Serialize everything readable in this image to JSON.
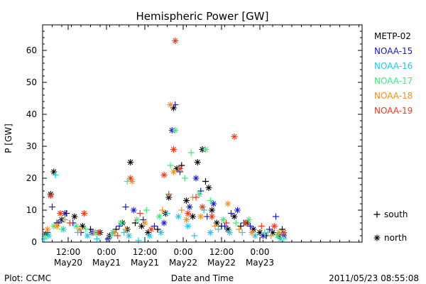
{
  "chart_data": {
    "type": "scatter",
    "title": "Hemispheric Power [GW]",
    "xlabel": "Date and Time",
    "ylabel": "P [GW]",
    "ylim": [
      0,
      68
    ],
    "yticks": [
      0,
      10,
      20,
      30,
      40,
      50,
      60
    ],
    "xlim": [
      "2011-05-20 04:00",
      "2011-05-24 08:00"
    ],
    "xticks": [
      {
        "t": "2011-05-20 12:00",
        "top": "12:00",
        "bottom": "May20"
      },
      {
        "t": "2011-05-21 00:00",
        "top": "0:00",
        "bottom": "May21"
      },
      {
        "t": "2011-05-21 12:00",
        "top": "12:00",
        "bottom": "May21"
      },
      {
        "t": "2011-05-22 00:00",
        "top": "0:00",
        "bottom": "May22"
      },
      {
        "t": "2011-05-22 12:00",
        "top": "12:00",
        "bottom": "May22"
      },
      {
        "t": "2011-05-23 00:00",
        "top": "0:00",
        "bottom": "May23"
      }
    ],
    "legend": {
      "placement": "right",
      "entries": [
        {
          "name": "METP-02",
          "color": "#000000"
        },
        {
          "name": "NOAA-15",
          "color": "#1a1acc"
        },
        {
          "name": "NOAA-16",
          "color": "#22c8e6"
        },
        {
          "name": "NOAA-17",
          "color": "#40e880"
        },
        {
          "name": "NOAA-18",
          "color": "#f0901e"
        },
        {
          "name": "NOAA-19",
          "color": "#e83c1c"
        }
      ],
      "markers": [
        {
          "symbol": "+",
          "label": "south"
        },
        {
          "symbol": "*",
          "label": "north"
        }
      ]
    },
    "footer": {
      "left": "Plot: CCMC",
      "right": "2011/05/23 08:55:08"
    },
    "series": [
      {
        "name": "METP-02",
        "color": "#000000",
        "points": [
          [
            "2011-05-20 05:00",
            2.5,
            "north"
          ],
          [
            "2011-05-20 06:30",
            15,
            "north"
          ],
          [
            "2011-05-20 07:30",
            22,
            "north"
          ],
          [
            "2011-05-20 08:30",
            6,
            "south"
          ],
          [
            "2011-05-20 10:00",
            7,
            "north"
          ],
          [
            "2011-05-20 11:30",
            9,
            "south"
          ],
          [
            "2011-05-20 14:00",
            8,
            "north"
          ],
          [
            "2011-05-20 16:30",
            5,
            "north"
          ],
          [
            "2011-05-20 19:00",
            4,
            "south"
          ],
          [
            "2011-05-20 22:00",
            3,
            "north"
          ],
          [
            "2011-05-21 01:00",
            2,
            "north"
          ],
          [
            "2011-05-21 03:00",
            4,
            "south"
          ],
          [
            "2011-05-21 05:00",
            6,
            "north"
          ],
          [
            "2011-05-21 06:30",
            4,
            "north"
          ],
          [
            "2011-05-21 07:30",
            25,
            "north"
          ],
          [
            "2011-05-21 09:00",
            6,
            "south"
          ],
          [
            "2011-05-21 11:00",
            5,
            "north"
          ],
          [
            "2011-05-21 13:00",
            3,
            "north"
          ],
          [
            "2011-05-21 16:00",
            4,
            "south"
          ],
          [
            "2011-05-21 18:30",
            9,
            "north"
          ],
          [
            "2011-05-21 19:30",
            14,
            "north"
          ],
          [
            "2011-05-21 21:00",
            42,
            "north"
          ],
          [
            "2011-05-21 22:00",
            23,
            "north"
          ],
          [
            "2011-05-21 23:30",
            24,
            "south"
          ],
          [
            "2011-05-22 01:00",
            13,
            "north"
          ],
          [
            "2011-05-22 03:00",
            8,
            "north"
          ],
          [
            "2011-05-22 04:30",
            25,
            "north"
          ],
          [
            "2011-05-22 06:00",
            29,
            "north"
          ],
          [
            "2011-05-22 07:00",
            19,
            "south"
          ],
          [
            "2011-05-22 08:00",
            17,
            "north"
          ],
          [
            "2011-05-22 09:00",
            10,
            "north"
          ],
          [
            "2011-05-22 10:30",
            6,
            "north"
          ],
          [
            "2011-05-22 12:00",
            5,
            "south"
          ],
          [
            "2011-05-22 14:00",
            4,
            "north"
          ],
          [
            "2011-05-22 16:00",
            8,
            "north"
          ],
          [
            "2011-05-22 18:00",
            5,
            "south"
          ],
          [
            "2011-05-22 20:00",
            6,
            "north"
          ],
          [
            "2011-05-22 22:00",
            4,
            "north"
          ],
          [
            "2011-05-23 00:00",
            3,
            "north"
          ],
          [
            "2011-05-23 02:00",
            2,
            "south"
          ],
          [
            "2011-05-23 04:00",
            3,
            "north"
          ],
          [
            "2011-05-23 06:00",
            2,
            "north"
          ],
          [
            "2011-05-23 07:00",
            4,
            "south"
          ]
        ]
      },
      {
        "name": "NOAA-15",
        "color": "#1a1acc",
        "points": [
          [
            "2011-05-20 05:30",
            3,
            "south"
          ],
          [
            "2011-05-20 07:00",
            11,
            "south"
          ],
          [
            "2011-05-20 09:00",
            6,
            "south"
          ],
          [
            "2011-05-20 11:00",
            9,
            "north"
          ],
          [
            "2011-05-20 13:30",
            6,
            "south"
          ],
          [
            "2011-05-20 16:00",
            3,
            "south"
          ],
          [
            "2011-05-20 19:30",
            3,
            "north"
          ],
          [
            "2011-05-21 00:30",
            1,
            "south"
          ],
          [
            "2011-05-21 04:00",
            5,
            "south"
          ],
          [
            "2011-05-21 06:00",
            11,
            "south"
          ],
          [
            "2011-05-21 08:30",
            10,
            "north"
          ],
          [
            "2011-05-21 11:30",
            7,
            "south"
          ],
          [
            "2011-05-21 15:00",
            5,
            "south"
          ],
          [
            "2011-05-21 18:00",
            6,
            "north"
          ],
          [
            "2011-05-21 20:30",
            35,
            "north"
          ],
          [
            "2011-05-21 21:30",
            43,
            "south"
          ],
          [
            "2011-05-21 23:00",
            22,
            "south"
          ],
          [
            "2011-05-22 02:00",
            11,
            "north"
          ],
          [
            "2011-05-22 04:00",
            20,
            "north"
          ],
          [
            "2011-05-22 05:30",
            16,
            "south"
          ],
          [
            "2011-05-22 07:30",
            8,
            "south"
          ],
          [
            "2011-05-22 09:30",
            12,
            "north"
          ],
          [
            "2011-05-22 13:00",
            5,
            "south"
          ],
          [
            "2011-05-22 15:00",
            9,
            "south"
          ],
          [
            "2011-05-22 17:00",
            10,
            "north"
          ],
          [
            "2011-05-22 19:00",
            6,
            "south"
          ],
          [
            "2011-05-22 21:00",
            5,
            "south"
          ],
          [
            "2011-05-23 01:00",
            2,
            "north"
          ],
          [
            "2011-05-23 03:00",
            4,
            "south"
          ],
          [
            "2011-05-23 05:00",
            8,
            "south"
          ],
          [
            "2011-05-23 07:30",
            2,
            "north"
          ]
        ]
      },
      {
        "name": "NOAA-16",
        "color": "#22c8e6",
        "points": [
          [
            "2011-05-20 04:30",
            1,
            "south"
          ],
          [
            "2011-05-20 06:00",
            2,
            "north"
          ],
          [
            "2011-05-20 08:00",
            21,
            "south"
          ],
          [
            "2011-05-20 10:30",
            4,
            "north"
          ],
          [
            "2011-05-20 15:00",
            3,
            "south"
          ],
          [
            "2011-05-20 18:00",
            2,
            "north"
          ],
          [
            "2011-05-20 21:00",
            1,
            "south"
          ],
          [
            "2011-05-21 02:00",
            3,
            "north"
          ],
          [
            "2011-05-21 05:30",
            3,
            "south"
          ],
          [
            "2011-05-21 07:00",
            2,
            "north"
          ],
          [
            "2011-05-21 10:00",
            0.5,
            "south"
          ],
          [
            "2011-05-21 13:30",
            2,
            "north"
          ],
          [
            "2011-05-21 17:00",
            3,
            "north"
          ],
          [
            "2011-05-21 19:00",
            9,
            "south"
          ],
          [
            "2011-05-21 22:30",
            8,
            "north"
          ],
          [
            "2011-05-22 01:30",
            5,
            "north"
          ],
          [
            "2011-05-22 03:30",
            2,
            "south"
          ],
          [
            "2011-05-22 06:30",
            10,
            "south"
          ],
          [
            "2011-05-22 08:30",
            3,
            "north"
          ],
          [
            "2011-05-22 11:00",
            4,
            "south"
          ],
          [
            "2011-05-22 14:30",
            3,
            "north"
          ],
          [
            "2011-05-22 18:30",
            3,
            "south"
          ],
          [
            "2011-05-22 22:30",
            2,
            "north"
          ],
          [
            "2011-05-23 02:30",
            3,
            "south"
          ],
          [
            "2011-05-23 06:30",
            1,
            "north"
          ]
        ]
      },
      {
        "name": "NOAA-17",
        "color": "#40e880",
        "points": [
          [
            "2011-05-20 05:00",
            2,
            "south"
          ],
          [
            "2011-05-20 07:30",
            5,
            "north"
          ],
          [
            "2011-05-20 10:00",
            4,
            "south"
          ],
          [
            "2011-05-20 14:30",
            5,
            "north"
          ],
          [
            "2011-05-20 17:30",
            4,
            "south"
          ],
          [
            "2011-05-20 20:30",
            3,
            "north"
          ],
          [
            "2011-05-21 01:30",
            2,
            "south"
          ],
          [
            "2011-05-21 04:30",
            6,
            "north"
          ],
          [
            "2011-05-21 06:30",
            19,
            "south"
          ],
          [
            "2011-05-21 09:30",
            7,
            "north"
          ],
          [
            "2011-05-21 12:30",
            10,
            "south"
          ],
          [
            "2011-05-21 16:30",
            8,
            "north"
          ],
          [
            "2011-05-21 20:00",
            24,
            "south"
          ],
          [
            "2011-05-21 21:30",
            35,
            "north"
          ],
          [
            "2011-05-22 00:30",
            20,
            "south"
          ],
          [
            "2011-05-22 02:30",
            28,
            "south"
          ],
          [
            "2011-05-22 05:00",
            15,
            "north"
          ],
          [
            "2011-05-22 07:00",
            29,
            "north"
          ],
          [
            "2011-05-22 08:30",
            13,
            "south"
          ],
          [
            "2011-05-22 12:30",
            7,
            "north"
          ],
          [
            "2011-05-22 16:30",
            6,
            "south"
          ],
          [
            "2011-05-22 20:30",
            7,
            "north"
          ],
          [
            "2011-05-23 01:30",
            3,
            "south"
          ],
          [
            "2011-05-23 05:30",
            2,
            "north"
          ],
          [
            "2011-05-23 07:30",
            1,
            "south"
          ]
        ]
      },
      {
        "name": "NOAA-18",
        "color": "#f0901e",
        "points": [
          [
            "2011-05-20 05:30",
            4,
            "north"
          ],
          [
            "2011-05-20 08:30",
            5,
            "north"
          ],
          [
            "2011-05-20 11:00",
            7,
            "south"
          ],
          [
            "2011-05-20 15:30",
            4,
            "north"
          ],
          [
            "2011-05-20 20:00",
            3,
            "south"
          ],
          [
            "2011-05-21 02:30",
            3,
            "north"
          ],
          [
            "2011-05-21 06:00",
            4,
            "south"
          ],
          [
            "2011-05-21 08:00",
            19,
            "north"
          ],
          [
            "2011-05-21 12:00",
            6,
            "north"
          ],
          [
            "2011-05-21 17:30",
            10,
            "south"
          ],
          [
            "2011-05-21 20:00",
            43,
            "north"
          ],
          [
            "2011-05-21 21:00",
            22,
            "north"
          ],
          [
            "2011-05-21 23:30",
            10,
            "south"
          ],
          [
            "2011-05-22 01:00",
            7,
            "north"
          ],
          [
            "2011-05-22 03:00",
            14,
            "south"
          ],
          [
            "2011-05-22 05:30",
            8,
            "north"
          ],
          [
            "2011-05-22 10:00",
            5,
            "south"
          ],
          [
            "2011-05-22 14:00",
            12,
            "north"
          ],
          [
            "2011-05-22 17:30",
            4,
            "south"
          ],
          [
            "2011-05-22 21:30",
            3,
            "north"
          ],
          [
            "2011-05-23 03:30",
            2,
            "south"
          ],
          [
            "2011-05-23 06:00",
            3,
            "north"
          ]
        ]
      },
      {
        "name": "NOAA-19",
        "color": "#e83c1c",
        "points": [
          [
            "2011-05-20 06:30",
            14.5,
            "north"
          ],
          [
            "2011-05-20 09:30",
            9,
            "north"
          ],
          [
            "2011-05-20 12:30",
            6,
            "south"
          ],
          [
            "2011-05-20 17:00",
            9,
            "north"
          ],
          [
            "2011-05-20 21:30",
            3,
            "north"
          ],
          [
            "2011-05-21 03:30",
            2,
            "south"
          ],
          [
            "2011-05-21 07:30",
            20,
            "north"
          ],
          [
            "2011-05-21 10:30",
            9,
            "south"
          ],
          [
            "2011-05-21 14:00",
            4,
            "north"
          ],
          [
            "2011-05-21 18:00",
            21,
            "north"
          ],
          [
            "2011-05-21 19:30",
            15,
            "south"
          ],
          [
            "2011-05-21 21:00",
            29,
            "north"
          ],
          [
            "2011-05-21 21:30",
            63,
            "north"
          ],
          [
            "2011-05-21 23:00",
            23,
            "north"
          ],
          [
            "2011-05-22 01:30",
            9,
            "north"
          ],
          [
            "2011-05-22 04:00",
            14,
            "south"
          ],
          [
            "2011-05-22 06:00",
            11,
            "north"
          ],
          [
            "2011-05-22 09:00",
            8,
            "north"
          ],
          [
            "2011-05-22 13:30",
            6,
            "south"
          ],
          [
            "2011-05-22 16:00",
            33,
            "north"
          ],
          [
            "2011-05-22 19:30",
            6,
            "north"
          ],
          [
            "2011-05-23 00:30",
            5,
            "south"
          ],
          [
            "2011-05-23 04:30",
            5,
            "north"
          ],
          [
            "2011-05-23 07:30",
            3,
            "north"
          ]
        ]
      }
    ]
  }
}
